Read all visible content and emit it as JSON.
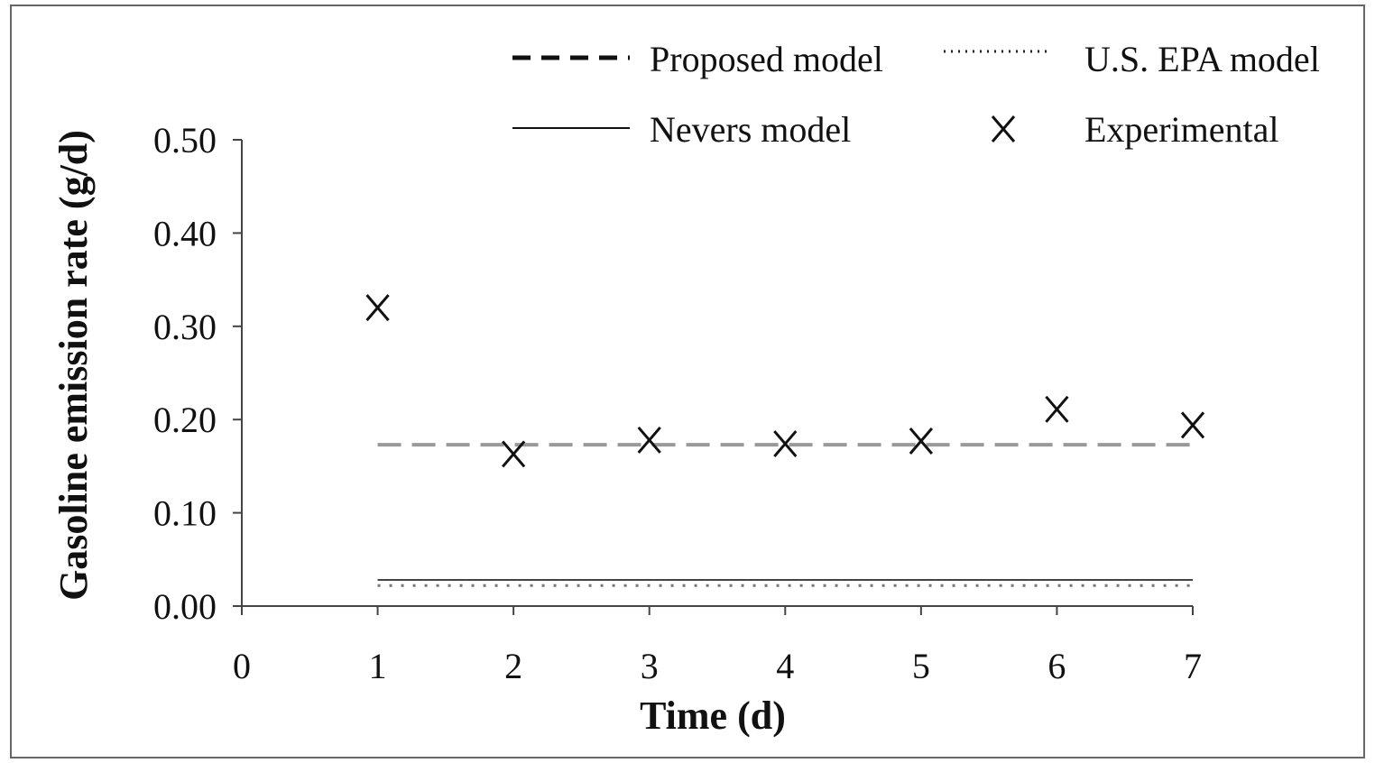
{
  "chart_data": {
    "type": "line",
    "xlabel": "Time (d)",
    "ylabel": "Gasoline emission rate (g/d)",
    "xlim": [
      0,
      7
    ],
    "ylim": [
      0,
      0.5
    ],
    "x_ticks": [
      "0",
      "1",
      "2",
      "3",
      "4",
      "5",
      "6",
      "7"
    ],
    "y_ticks": [
      "0.00",
      "0.10",
      "0.20",
      "0.30",
      "0.40",
      "0.50"
    ],
    "grid": false,
    "legend_position": "top",
    "series": [
      {
        "name": "Proposed model",
        "style": "dashed",
        "color": "#999999",
        "x": [
          1,
          7
        ],
        "y": [
          0.173,
          0.173
        ]
      },
      {
        "name": "U.S. EPA model",
        "style": "dotted",
        "color": "#777777",
        "x": [
          1,
          7
        ],
        "y": [
          0.022,
          0.022
        ]
      },
      {
        "name": "Nevers model",
        "style": "solid",
        "color": "#444444",
        "x": [
          1,
          7
        ],
        "y": [
          0.028,
          0.028
        ]
      },
      {
        "name": "Experimental",
        "style": "markers",
        "marker": "X",
        "color": "#111111",
        "x": [
          1,
          2,
          3,
          4,
          5,
          6,
          7
        ],
        "y": [
          0.32,
          0.163,
          0.178,
          0.174,
          0.177,
          0.211,
          0.194
        ]
      }
    ]
  }
}
